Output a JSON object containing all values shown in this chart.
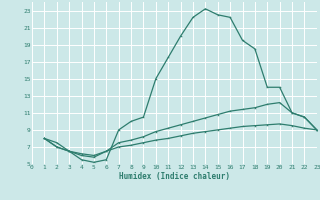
{
  "xlabel": "Humidex (Indice chaleur)",
  "bg_color": "#cce8e8",
  "grid_color": "#ffffff",
  "line_color": "#2e7d6e",
  "xlim": [
    0,
    23
  ],
  "ylim": [
    5,
    24
  ],
  "yticks": [
    5,
    7,
    9,
    11,
    13,
    15,
    17,
    19,
    21,
    23
  ],
  "xticks": [
    0,
    1,
    2,
    3,
    4,
    5,
    6,
    7,
    8,
    9,
    10,
    11,
    12,
    13,
    14,
    15,
    16,
    17,
    18,
    19,
    20,
    21,
    22,
    23
  ],
  "curve1_x": [
    1,
    2,
    3,
    4,
    5,
    6,
    7,
    8,
    9,
    10,
    11,
    12,
    13,
    14,
    15,
    16,
    17,
    18,
    19,
    20,
    21,
    22,
    23
  ],
  "curve1_y": [
    8.0,
    7.5,
    6.5,
    5.5,
    5.2,
    5.5,
    9.0,
    10.0,
    10.5,
    15.0,
    17.5,
    20.0,
    22.2,
    23.2,
    22.5,
    22.2,
    19.5,
    18.5,
    14.0,
    14.0,
    11.0,
    10.5,
    9.0
  ],
  "curve2_x": [
    1,
    2,
    3,
    4,
    5,
    6,
    7,
    8,
    9,
    10,
    11,
    12,
    13,
    14,
    15,
    16,
    17,
    18,
    19,
    20,
    21,
    22,
    23
  ],
  "curve2_y": [
    8.0,
    7.0,
    6.5,
    6.0,
    5.8,
    6.5,
    7.5,
    7.8,
    8.2,
    8.8,
    9.2,
    9.6,
    10.0,
    10.4,
    10.8,
    11.2,
    11.4,
    11.6,
    12.0,
    12.2,
    11.0,
    10.5,
    9.0
  ],
  "curve3_x": [
    1,
    2,
    3,
    4,
    5,
    6,
    7,
    8,
    9,
    10,
    11,
    12,
    13,
    14,
    15,
    16,
    17,
    18,
    19,
    20,
    21,
    22,
    23
  ],
  "curve3_y": [
    8.0,
    7.0,
    6.5,
    6.2,
    6.0,
    6.5,
    7.0,
    7.2,
    7.5,
    7.8,
    8.0,
    8.3,
    8.6,
    8.8,
    9.0,
    9.2,
    9.4,
    9.5,
    9.6,
    9.7,
    9.5,
    9.2,
    9.0
  ]
}
